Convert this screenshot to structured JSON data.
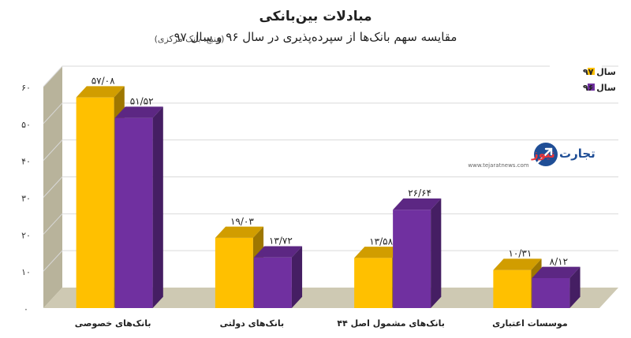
{
  "title": "مبادلات بین‌بانکی",
  "subtitle": "مقایسه سهم بانک‌ها از سپرده‌پذیری در سال ۹۶ و سال ۹۷",
  "source": "(منبع: بانک مرکزی)",
  "logo": {
    "name_part1": "تجارت",
    "name_part2": "نیوز",
    "url": "www.tejaratnews.com"
  },
  "chart_data": {
    "type": "bar",
    "style": "3d-clustered",
    "categories": [
      "بانک‌های خصوصی",
      "بانک‌های دولتی",
      "بانک‌های مشمول اصل ۴۴",
      "موسسات اعتباری"
    ],
    "series": [
      {
        "name": "سال ۹۷",
        "color": "#FFC000",
        "values": [
          57.08,
          19.03,
          13.58,
          10.31
        ],
        "labels": [
          "۵۷/۰۸",
          "۱۹/۰۳",
          "۱۳/۵۸",
          "۱۰/۳۱"
        ]
      },
      {
        "name": "سال ۹۶",
        "color": "#7030A0",
        "values": [
          51.52,
          13.72,
          26.64,
          8.12
        ],
        "labels": [
          "۵۱/۵۲",
          "۱۳/۷۲",
          "۲۶/۶۴",
          "۸/۱۲"
        ]
      }
    ],
    "ylim": [
      0,
      60
    ],
    "yticks": [
      0,
      10,
      20,
      30,
      40,
      50,
      60
    ],
    "ytick_labels": [
      "۰",
      "۱۰",
      "۲۰",
      "۳۰",
      "۴۰",
      "۵۰",
      "۶۰"
    ],
    "legend_position": "top-right",
    "grid": true,
    "wall_color": "#B8B39B",
    "floor_color": "#CEC9B3"
  }
}
